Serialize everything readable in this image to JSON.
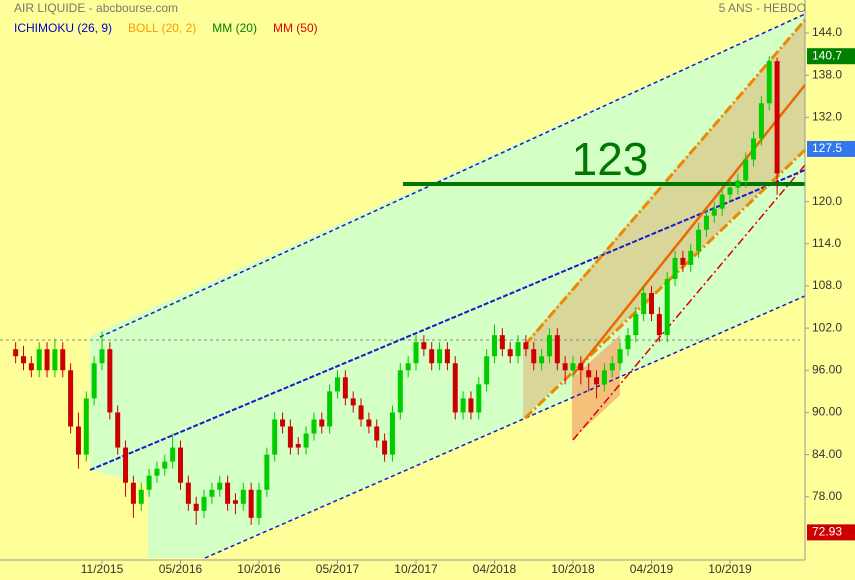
{
  "chart_data": {
    "type": "candlestick",
    "title": "AIR LIQUIDE - abcbourse.com",
    "subtitle": "5 ANS - HEBDO",
    "indicators": [
      {
        "name": "ICHIMOKU (26, 9)",
        "color": "#0000cc"
      },
      {
        "name": "BOLL (20, 2)",
        "color": "#ff9900"
      },
      {
        "name": "MM (20)",
        "color": "#008000"
      },
      {
        "name": "MM (50)",
        "color": "#e00000"
      }
    ],
    "annotation": "123",
    "up_color": "#00cc00",
    "down_color": "#cc0000",
    "ohlc": [
      [
        99,
        100,
        97,
        98
      ],
      [
        98,
        99.5,
        96,
        97
      ],
      [
        97,
        98,
        95,
        96
      ],
      [
        96,
        100,
        95,
        99
      ],
      [
        99,
        100,
        95,
        96
      ],
      [
        96,
        100.5,
        95,
        99
      ],
      [
        99,
        100,
        95,
        96
      ],
      [
        96,
        97,
        87,
        88
      ],
      [
        88,
        90,
        82,
        84
      ],
      [
        84,
        93,
        83,
        92
      ],
      [
        92,
        98,
        91,
        97
      ],
      [
        97,
        101.5,
        96,
        99
      ],
      [
        99,
        100,
        89,
        90
      ],
      [
        90,
        91,
        84,
        85
      ],
      [
        85,
        86,
        78,
        80
      ],
      [
        80,
        81,
        75,
        77
      ],
      [
        77,
        80,
        76,
        79
      ],
      [
        79,
        82,
        78,
        81
      ],
      [
        81,
        83,
        80,
        82
      ],
      [
        82,
        84,
        81,
        83
      ],
      [
        83,
        87,
        82,
        85
      ],
      [
        85,
        86,
        79,
        80
      ],
      [
        80,
        81,
        76,
        77
      ],
      [
        77,
        78,
        74,
        76
      ],
      [
        76,
        79,
        75,
        78
      ],
      [
        78,
        80,
        77,
        79
      ],
      [
        79,
        81,
        78,
        80
      ],
      [
        80,
        81,
        76,
        77
      ],
      [
        77.5,
        78.5,
        75.5,
        77
      ],
      [
        77,
        80,
        76,
        79
      ],
      [
        79,
        80,
        74,
        75
      ],
      [
        75,
        80,
        74,
        79
      ],
      [
        79,
        85,
        78,
        84
      ],
      [
        84,
        90,
        83,
        89
      ],
      [
        89,
        90,
        87,
        88
      ],
      [
        88,
        89,
        84,
        85
      ],
      [
        85.5,
        86.5,
        84,
        85
      ],
      [
        85,
        88,
        84,
        87
      ],
      [
        87,
        90,
        86,
        89
      ],
      [
        89,
        90,
        87,
        88
      ],
      [
        88,
        94,
        87,
        93
      ],
      [
        93,
        96,
        92,
        95
      ],
      [
        95,
        96,
        91,
        92
      ],
      [
        92,
        93,
        90,
        91
      ],
      [
        91,
        92,
        88,
        89
      ],
      [
        89,
        90,
        87,
        88
      ],
      [
        88,
        89,
        85,
        86
      ],
      [
        86,
        87,
        83,
        84
      ],
      [
        84,
        91,
        83,
        90
      ],
      [
        90,
        97,
        89,
        96
      ],
      [
        96,
        98,
        95,
        97
      ],
      [
        97,
        101,
        96,
        100
      ],
      [
        100,
        101,
        98,
        99
      ],
      [
        99,
        100,
        96,
        97
      ],
      [
        97,
        100,
        96,
        99
      ],
      [
        99,
        100,
        96,
        97
      ],
      [
        97,
        98,
        89,
        90
      ],
      [
        90,
        93,
        89,
        92
      ],
      [
        92,
        93,
        89,
        90
      ],
      [
        90,
        95,
        89,
        94
      ],
      [
        94,
        99,
        93,
        98
      ],
      [
        98,
        102.5,
        97,
        101
      ],
      [
        101,
        102,
        98,
        99
      ],
      [
        99,
        100,
        97,
        98
      ],
      [
        98,
        101,
        97,
        100
      ],
      [
        100,
        101,
        98,
        99
      ],
      [
        99,
        100,
        96,
        97
      ],
      [
        97,
        99,
        96,
        98
      ],
      [
        98,
        102,
        97,
        101
      ],
      [
        101,
        102,
        96,
        97
      ],
      [
        97,
        98,
        94,
        96
      ],
      [
        96,
        98,
        95,
        97
      ],
      [
        97,
        98,
        94,
        96
      ],
      [
        96,
        97,
        93,
        95
      ],
      [
        95,
        96,
        92,
        94
      ],
      [
        94,
        97,
        93,
        96
      ],
      [
        96,
        98,
        95,
        97
      ],
      [
        97,
        100,
        96,
        99
      ],
      [
        99,
        102,
        98,
        101
      ],
      [
        101,
        105,
        100,
        104
      ],
      [
        104,
        108,
        103,
        107
      ],
      [
        107,
        108,
        103,
        104
      ],
      [
        104,
        105,
        100,
        101
      ],
      [
        101,
        110,
        100,
        109
      ],
      [
        109,
        113,
        108,
        112
      ],
      [
        112,
        113,
        110,
        111
      ],
      [
        111,
        114,
        110,
        113
      ],
      [
        113,
        117,
        112,
        116
      ],
      [
        116,
        119,
        115,
        118
      ],
      [
        118,
        120,
        117,
        119
      ],
      [
        119,
        122,
        118,
        121
      ],
      [
        121,
        123,
        120,
        122
      ],
      [
        122,
        124,
        121,
        123
      ],
      [
        123,
        127,
        122,
        126
      ],
      [
        126,
        130,
        125,
        129
      ],
      [
        129,
        135,
        128,
        134
      ],
      [
        134,
        140.7,
        133,
        140
      ],
      [
        140,
        140.5,
        121,
        124
      ]
    ],
    "xticks": [
      {
        "value": 11,
        "label": "11/2015"
      },
      {
        "value": 21,
        "label": "05/2016"
      },
      {
        "value": 31,
        "label": "10/2016"
      },
      {
        "value": 41,
        "label": "05/2017"
      },
      {
        "value": 51,
        "label": "10/2017"
      },
      {
        "value": 61,
        "label": "04/2018"
      },
      {
        "value": 71,
        "label": "10/2018"
      },
      {
        "value": 81,
        "label": "04/2019"
      },
      {
        "value": 91,
        "label": "10/2019"
      }
    ],
    "ylim": [
      69,
      148.7
    ],
    "yticks": [
      {
        "value": 144,
        "label": "144.0"
      },
      {
        "value": 138,
        "label": "138.0"
      },
      {
        "value": 132,
        "label": "132.0"
      },
      {
        "value": 120,
        "label": "120.0"
      },
      {
        "value": 114,
        "label": "114.0"
      },
      {
        "value": 108,
        "label": "108.0"
      },
      {
        "value": 102,
        "label": "102.0"
      },
      {
        "value": 96,
        "label": "96.00"
      },
      {
        "value": 90,
        "label": "90.00"
      },
      {
        "value": 84,
        "label": "84.00"
      },
      {
        "value": 78,
        "label": "78.00"
      }
    ],
    "price_labels": [
      {
        "value": 140.7,
        "color": "#008000"
      },
      {
        "value": 127.5,
        "color": "#3377ee"
      },
      {
        "value": 72.93,
        "color": "#cc0000"
      }
    ]
  }
}
